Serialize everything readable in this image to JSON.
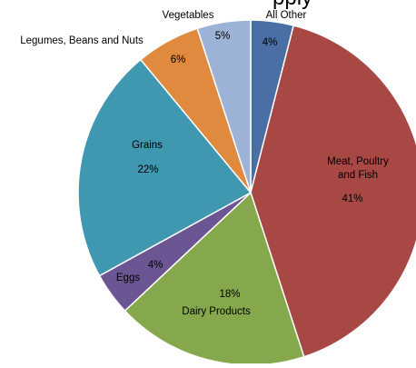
{
  "chart_data": {
    "type": "pie",
    "title": "pply",
    "start_angle_deg": 0,
    "direction": "clockwise",
    "slices": [
      {
        "label": "All Other",
        "value": 4,
        "color": "#4a6fa5",
        "text_color": "#000000"
      },
      {
        "label": "Meat, Poultry and Fish",
        "value": 41,
        "color": "#a84845",
        "text_color": "#000000"
      },
      {
        "label": "Dairy Products",
        "value": 18,
        "color": "#86a84c",
        "text_color": "#000000"
      },
      {
        "label": "Eggs",
        "value": 4,
        "color": "#6b5592",
        "text_color": "#000000"
      },
      {
        "label": "Grains",
        "value": 22,
        "color": "#3f97b0",
        "text_color": "#000000"
      },
      {
        "label": "Legumes, Beans and Nuts",
        "value": 6,
        "color": "#df8a3e",
        "text_color": "#000000"
      },
      {
        "label": "Vegetables",
        "value": 5,
        "color": "#9cb2d7",
        "text_color": "#000000"
      }
    ],
    "value_suffix": "%"
  }
}
